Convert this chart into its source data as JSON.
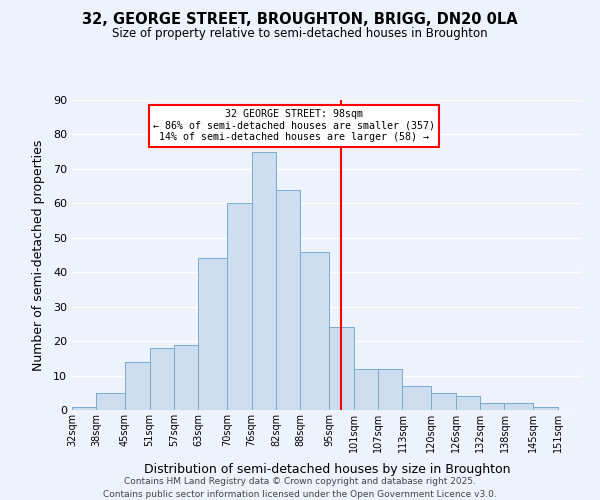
{
  "title": "32, GEORGE STREET, BROUGHTON, BRIGG, DN20 0LA",
  "subtitle": "Size of property relative to semi-detached houses in Broughton",
  "xlabel": "Distribution of semi-detached houses by size in Broughton",
  "ylabel": "Number of semi-detached properties",
  "bar_color": "#ccddf0",
  "bar_edge_color": "#7aaad0",
  "background_color": "#eef2fc",
  "grid_color": "#ffffff",
  "bins": [
    32,
    38,
    45,
    51,
    57,
    63,
    70,
    76,
    82,
    88,
    95,
    101,
    107,
    113,
    120,
    126,
    132,
    138,
    145,
    151,
    157
  ],
  "counts": [
    1,
    5,
    14,
    18,
    19,
    44,
    60,
    75,
    64,
    46,
    24,
    12,
    12,
    7,
    5,
    4,
    2,
    2,
    1,
    0
  ],
  "property_size": 98,
  "annotation_title": "32 GEORGE STREET: 98sqm",
  "annotation_line1": "← 86% of semi-detached houses are smaller (357)",
  "annotation_line2": "14% of semi-detached houses are larger (58) →",
  "vline_color": "red",
  "ylim": [
    0,
    90
  ],
  "yticks": [
    0,
    10,
    20,
    30,
    40,
    50,
    60,
    70,
    80,
    90
  ],
  "footnote1": "Contains HM Land Registry data © Crown copyright and database right 2025.",
  "footnote2": "Contains public sector information licensed under the Open Government Licence v3.0."
}
